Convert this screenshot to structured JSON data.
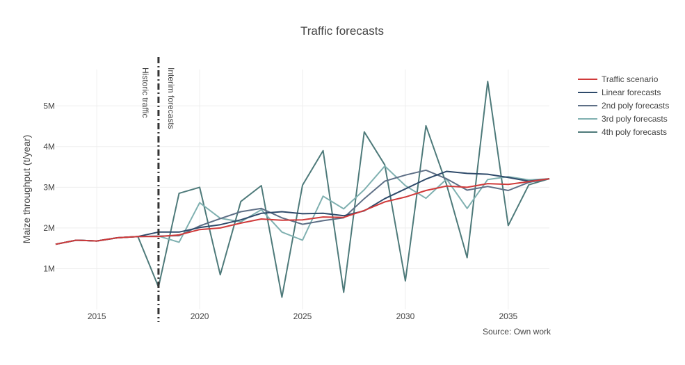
{
  "chart_data": {
    "type": "line",
    "title": "Traffic forecasts",
    "xlabel": "",
    "ylabel": "Maize throughput (t/year)",
    "source": "Source: Own work",
    "xlim": [
      2013,
      2037
    ],
    "ylim": [
      0,
      6200000
    ],
    "x_ticks": [
      {
        "value": 2015,
        "label": "2015"
      },
      {
        "value": 2020,
        "label": "2020"
      },
      {
        "value": 2025,
        "label": "2025"
      },
      {
        "value": 2030,
        "label": "2030"
      },
      {
        "value": 2035,
        "label": "2035"
      }
    ],
    "y_ticks": [
      {
        "value": 1000000,
        "label": "1M"
      },
      {
        "value": 2000000,
        "label": "2M"
      },
      {
        "value": 3000000,
        "label": "3M"
      },
      {
        "value": 4000000,
        "label": "4M"
      },
      {
        "value": 5000000,
        "label": "5M"
      }
    ],
    "grid": true,
    "legend_position": "top-right",
    "vertical_line": {
      "x": 2018,
      "style": "dashdot",
      "color": "#333333",
      "annotations": [
        {
          "text": "Historic traffic",
          "side": "left"
        },
        {
          "text": "Interim forecasts",
          "side": "right"
        }
      ]
    },
    "series": [
      {
        "name": "4th poly forecasts",
        "color": "#4e7a7a",
        "x": [
          2013,
          2014,
          2015,
          2016,
          2017,
          2018,
          2019,
          2020,
          2021,
          2022,
          2023,
          2024,
          2025,
          2026,
          2027,
          2028,
          2029,
          2030,
          2031,
          2032,
          2033,
          2034,
          2035,
          2036,
          2037
        ],
        "y": [
          1600000,
          1700000,
          1680000,
          1760000,
          1790000,
          550000,
          2850000,
          3000000,
          850000,
          2650000,
          3040000,
          300000,
          3050000,
          3900000,
          420000,
          4360000,
          3550000,
          700000,
          4510000,
          3070000,
          1270000,
          5600000,
          2060000,
          3060000,
          3210000
        ]
      },
      {
        "name": "3rd poly forecasts",
        "color": "#7fb0b0",
        "x": [
          2013,
          2014,
          2015,
          2016,
          2017,
          2018,
          2019,
          2020,
          2021,
          2022,
          2023,
          2024,
          2025,
          2026,
          2027,
          2028,
          2029,
          2030,
          2031,
          2032,
          2033,
          2034,
          2035,
          2036,
          2037
        ],
        "y": [
          1600000,
          1700000,
          1680000,
          1760000,
          1790000,
          1800000,
          1650000,
          2620000,
          2240000,
          2150000,
          2450000,
          1900000,
          1700000,
          2780000,
          2470000,
          2940000,
          3520000,
          3040000,
          2730000,
          3200000,
          2480000,
          3190000,
          3260000,
          3180000,
          3210000
        ]
      },
      {
        "name": "2nd poly forecasts",
        "color": "#5e6f86",
        "x": [
          2013,
          2014,
          2015,
          2016,
          2017,
          2018,
          2019,
          2020,
          2021,
          2022,
          2023,
          2024,
          2025,
          2026,
          2027,
          2028,
          2029,
          2030,
          2031,
          2032,
          2033,
          2034,
          2035,
          2036,
          2037
        ],
        "y": [
          1600000,
          1700000,
          1680000,
          1760000,
          1790000,
          1800000,
          1810000,
          2050000,
          2230000,
          2400000,
          2480000,
          2250000,
          2090000,
          2180000,
          2250000,
          2720000,
          3150000,
          3300000,
          3420000,
          3210000,
          2930000,
          3020000,
          2920000,
          3120000,
          3210000
        ]
      },
      {
        "name": "Linear forecasts",
        "color": "#2e4a6a",
        "x": [
          2013,
          2014,
          2015,
          2016,
          2017,
          2018,
          2019,
          2020,
          2021,
          2022,
          2023,
          2024,
          2025,
          2026,
          2027,
          2028,
          2029,
          2030,
          2031,
          2032,
          2033,
          2034,
          2035,
          2036,
          2037
        ],
        "y": [
          1600000,
          1700000,
          1680000,
          1760000,
          1790000,
          1900000,
          1900000,
          2010000,
          2080000,
          2200000,
          2360000,
          2400000,
          2350000,
          2360000,
          2300000,
          2420000,
          2720000,
          2960000,
          3200000,
          3390000,
          3340000,
          3320000,
          3240000,
          3150000,
          3210000
        ]
      },
      {
        "name": "Traffic scenario",
        "color": "#d03a3a",
        "x": [
          2013,
          2014,
          2015,
          2016,
          2017,
          2018,
          2019,
          2020,
          2021,
          2022,
          2023,
          2024,
          2025,
          2026,
          2027,
          2028,
          2029,
          2030,
          2031,
          2032,
          2033,
          2034,
          2035,
          2036,
          2037
        ],
        "y": [
          1600000,
          1700000,
          1680000,
          1760000,
          1790000,
          1790000,
          1830000,
          1960000,
          2000000,
          2120000,
          2220000,
          2190000,
          2200000,
          2270000,
          2260000,
          2430000,
          2640000,
          2760000,
          2920000,
          3030000,
          3000000,
          3090000,
          3070000,
          3140000,
          3210000
        ]
      }
    ],
    "legend_order": [
      "Traffic scenario",
      "Linear forecasts",
      "2nd poly forecasts",
      "3rd poly forecasts",
      "4th poly forecasts"
    ]
  }
}
